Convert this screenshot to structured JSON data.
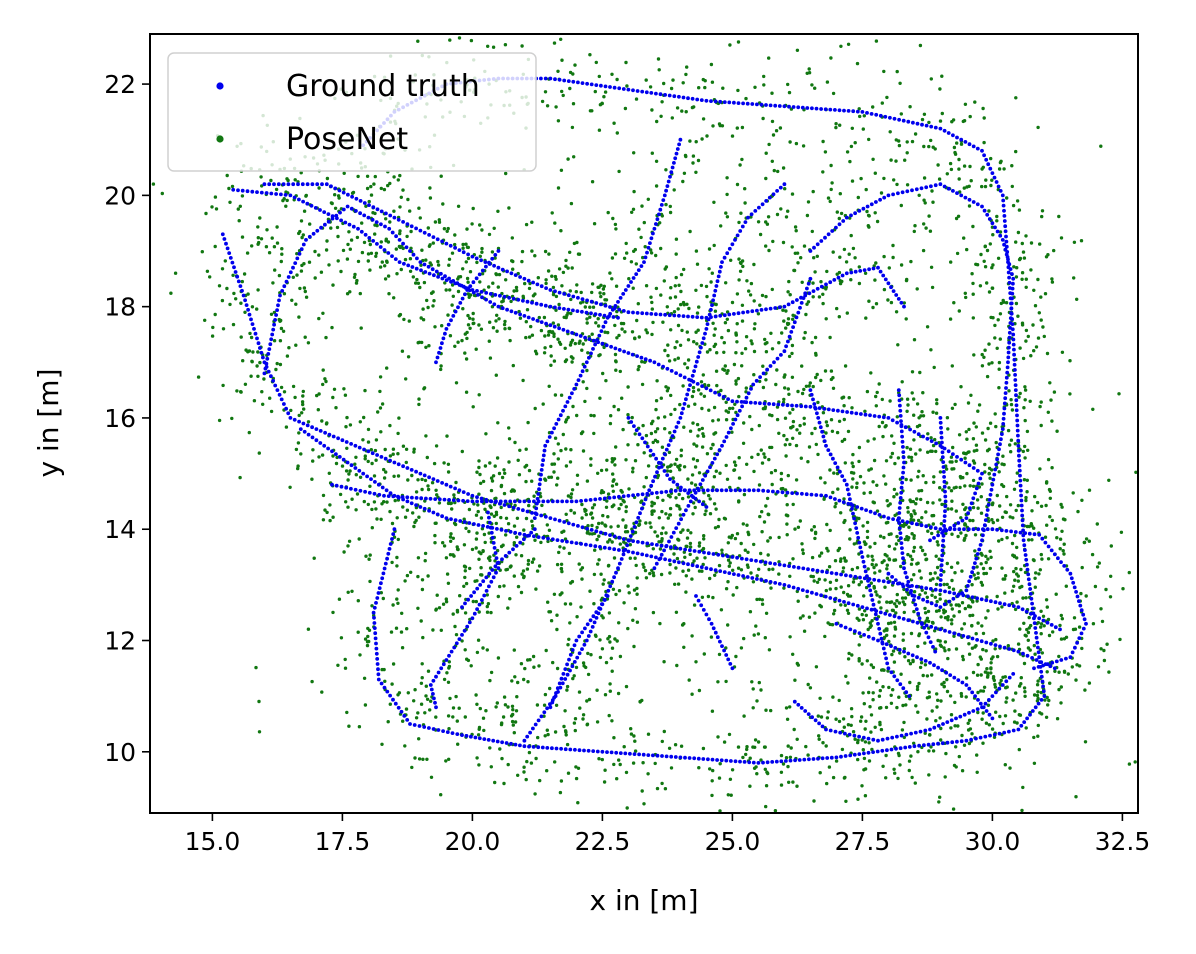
{
  "chart_data": {
    "type": "scatter",
    "title": "",
    "xlabel": "x in [m]",
    "ylabel": "y in [m]",
    "xlim": [
      13.8,
      32.8
    ],
    "ylim": [
      8.9,
      22.9
    ],
    "xticks": [
      "15.0",
      "17.5",
      "20.0",
      "22.5",
      "25.0",
      "27.5",
      "30.0",
      "32.5"
    ],
    "yticks": [
      "10",
      "12",
      "14",
      "16",
      "18",
      "20",
      "22"
    ],
    "grid": false,
    "legend": {
      "position": "top-left",
      "entries": [
        "Ground truth",
        "PoseNet"
      ]
    },
    "colors": {
      "ground_truth": "#0000ee",
      "posenet": "#117711"
    },
    "series": [
      {
        "name": "Ground truth",
        "kind": "trajectory",
        "paths": [
          [
            [
              15.2,
              19.3
            ],
            [
              15.6,
              18.2
            ],
            [
              16.0,
              17.0
            ],
            [
              16.5,
              16.0
            ],
            [
              17.5,
              15.6
            ],
            [
              18.5,
              15.2
            ],
            [
              20.0,
              14.6
            ],
            [
              21.5,
              14.2
            ],
            [
              23.0,
              13.8
            ],
            [
              25.0,
              13.5
            ],
            [
              27.0,
              13.2
            ],
            [
              29.0,
              12.9
            ],
            [
              30.5,
              12.6
            ],
            [
              31.3,
              12.2
            ]
          ],
          [
            [
              16.0,
              20.2
            ],
            [
              17.2,
              20.2
            ],
            [
              18.5,
              19.6
            ],
            [
              20.0,
              18.9
            ],
            [
              21.5,
              18.3
            ],
            [
              23.0,
              17.9
            ],
            [
              24.5,
              17.8
            ],
            [
              26.0,
              18.0
            ],
            [
              27.2,
              18.6
            ],
            [
              27.8,
              18.7
            ],
            [
              28.3,
              18.0
            ]
          ],
          [
            [
              16.0,
              16.8
            ],
            [
              16.3,
              18.2
            ],
            [
              16.8,
              19.2
            ],
            [
              17.6,
              19.8
            ],
            [
              18.4,
              19.4
            ],
            [
              19.0,
              18.8
            ],
            [
              20.5,
              18.0
            ],
            [
              22.0,
              17.5
            ],
            [
              23.5,
              17.0
            ],
            [
              25.0,
              16.3
            ],
            [
              26.5,
              16.2
            ],
            [
              28.0,
              16.0
            ],
            [
              29.0,
              15.5
            ],
            [
              29.8,
              15.0
            ],
            [
              29.5,
              14.2
            ],
            [
              28.8,
              13.8
            ]
          ],
          [
            [
              16.7,
              15.8
            ],
            [
              17.6,
              15.2
            ],
            [
              18.5,
              14.6
            ],
            [
              19.5,
              14.2
            ],
            [
              21.0,
              13.9
            ],
            [
              23.0,
              13.6
            ],
            [
              24.5,
              13.3
            ],
            [
              26.0,
              13.0
            ],
            [
              27.5,
              12.6
            ],
            [
              29.0,
              12.2
            ],
            [
              30.5,
              11.8
            ],
            [
              31.2,
              11.5
            ]
          ],
          [
            [
              18.5,
              14.0
            ],
            [
              18.1,
              12.5
            ],
            [
              18.2,
              11.3
            ],
            [
              18.8,
              10.5
            ],
            [
              19.8,
              10.3
            ],
            [
              21.0,
              10.1
            ],
            [
              22.5,
              10.0
            ],
            [
              24.0,
              9.9
            ],
            [
              25.5,
              9.8
            ],
            [
              27.0,
              9.9
            ],
            [
              28.5,
              10.1
            ],
            [
              29.5,
              10.2
            ],
            [
              30.5,
              10.4
            ],
            [
              31.0,
              11.0
            ],
            [
              30.8,
              12.4
            ],
            [
              30.6,
              13.8
            ],
            [
              30.5,
              15.5
            ],
            [
              30.4,
              17.5
            ],
            [
              30.3,
              18.8
            ],
            [
              30.2,
              20.0
            ],
            [
              29.8,
              20.8
            ],
            [
              29.0,
              21.2
            ],
            [
              27.5,
              21.5
            ],
            [
              26.0,
              21.6
            ],
            [
              24.5,
              21.7
            ],
            [
              23.0,
              21.9
            ],
            [
              21.5,
              22.1
            ],
            [
              20.5,
              22.1
            ],
            [
              19.5,
              22.0
            ],
            [
              18.5,
              21.5
            ],
            [
              17.9,
              20.9
            ]
          ],
          [
            [
              15.4,
              20.1
            ],
            [
              16.5,
              20.0
            ],
            [
              17.8,
              19.4
            ],
            [
              18.6,
              18.8
            ],
            [
              20.0,
              18.3
            ],
            [
              21.5,
              18.0
            ],
            [
              22.8,
              17.8
            ]
          ],
          [
            [
              17.3,
              14.8
            ],
            [
              18.3,
              14.6
            ],
            [
              20.0,
              14.5
            ],
            [
              22.0,
              14.5
            ],
            [
              24.0,
              14.7
            ],
            [
              25.5,
              14.7
            ],
            [
              26.8,
              14.6
            ],
            [
              28.0,
              14.2
            ],
            [
              29.0,
              14.0
            ],
            [
              30.0,
              14.0
            ],
            [
              30.9,
              13.9
            ],
            [
              31.5,
              13.2
            ],
            [
              31.8,
              12.3
            ],
            [
              31.5,
              11.7
            ],
            [
              30.8,
              11.5
            ]
          ],
          [
            [
              20.3,
              14.3
            ],
            [
              20.5,
              13.3
            ],
            [
              20.0,
              12.4
            ],
            [
              19.2,
              11.2
            ],
            [
              19.3,
              10.8
            ]
          ],
          [
            [
              19.8,
              12.6
            ],
            [
              20.5,
              13.4
            ],
            [
              21.2,
              14.0
            ]
          ],
          [
            [
              21.0,
              10.2
            ],
            [
              21.6,
              11.0
            ],
            [
              22.2,
              12.0
            ],
            [
              22.8,
              13.3
            ],
            [
              23.4,
              14.7
            ],
            [
              24.0,
              16.0
            ],
            [
              24.5,
              17.6
            ],
            [
              24.8,
              18.8
            ],
            [
              25.3,
              19.6
            ],
            [
              26.0,
              20.2
            ]
          ],
          [
            [
              21.2,
              14.2
            ],
            [
              21.4,
              15.5
            ],
            [
              22.0,
              16.6
            ],
            [
              22.6,
              17.8
            ],
            [
              23.3,
              18.8
            ],
            [
              23.7,
              20.0
            ],
            [
              24.0,
              21.0
            ]
          ],
          [
            [
              23.0,
              16.0
            ],
            [
              23.8,
              14.9
            ],
            [
              24.5,
              14.4
            ]
          ],
          [
            [
              23.5,
              13.3
            ],
            [
              24.2,
              14.5
            ],
            [
              24.8,
              15.5
            ],
            [
              25.4,
              16.6
            ],
            [
              26.0,
              17.2
            ],
            [
              26.5,
              18.5
            ]
          ],
          [
            [
              26.5,
              16.5
            ],
            [
              26.8,
              15.5
            ],
            [
              27.2,
              14.8
            ],
            [
              27.5,
              13.5
            ],
            [
              27.8,
              12.3
            ],
            [
              28.0,
              11.5
            ],
            [
              28.4,
              11.0
            ]
          ],
          [
            [
              26.2,
              10.9
            ],
            [
              26.8,
              10.4
            ],
            [
              27.8,
              10.2
            ],
            [
              28.8,
              10.4
            ],
            [
              29.8,
              10.8
            ],
            [
              30.4,
              11.4
            ]
          ],
          [
            [
              26.5,
              19.0
            ],
            [
              27.2,
              19.6
            ],
            [
              28.0,
              20.0
            ],
            [
              29.0,
              20.2
            ],
            [
              29.8,
              19.8
            ],
            [
              30.2,
              19.2
            ],
            [
              30.4,
              18.5
            ],
            [
              30.3,
              17.0
            ],
            [
              30.2,
              15.8
            ],
            [
              30.0,
              14.8
            ],
            [
              29.8,
              13.8
            ],
            [
              29.5,
              12.9
            ],
            [
              29.0,
              12.6
            ],
            [
              28.5,
              12.8
            ],
            [
              28.0,
              13.2
            ]
          ],
          [
            [
              27.0,
              12.3
            ],
            [
              27.8,
              12.0
            ],
            [
              28.8,
              11.6
            ],
            [
              29.5,
              11.2
            ],
            [
              30.0,
              10.6
            ]
          ],
          [
            [
              28.2,
              16.5
            ],
            [
              28.3,
              15.2
            ],
            [
              28.2,
              14.2
            ],
            [
              28.3,
              13.3
            ],
            [
              28.6,
              12.4
            ],
            [
              28.9,
              11.8
            ]
          ],
          [
            [
              29.0,
              13.0
            ],
            [
              29.1,
              14.5
            ],
            [
              29.0,
              16.0
            ]
          ],
          [
            [
              20.5,
              19.0
            ],
            [
              19.9,
              18.3
            ],
            [
              19.5,
              17.6
            ],
            [
              19.3,
              17.0
            ]
          ],
          [
            [
              21.5,
              10.8
            ],
            [
              22.0,
              12.0
            ],
            [
              22.6,
              12.8
            ]
          ],
          [
            [
              25.0,
              11.5
            ],
            [
              24.6,
              12.3
            ],
            [
              24.3,
              12.8
            ]
          ]
        ]
      },
      {
        "name": "PoseNet",
        "kind": "noisy-estimate",
        "spread_m": 0.5
      }
    ]
  }
}
